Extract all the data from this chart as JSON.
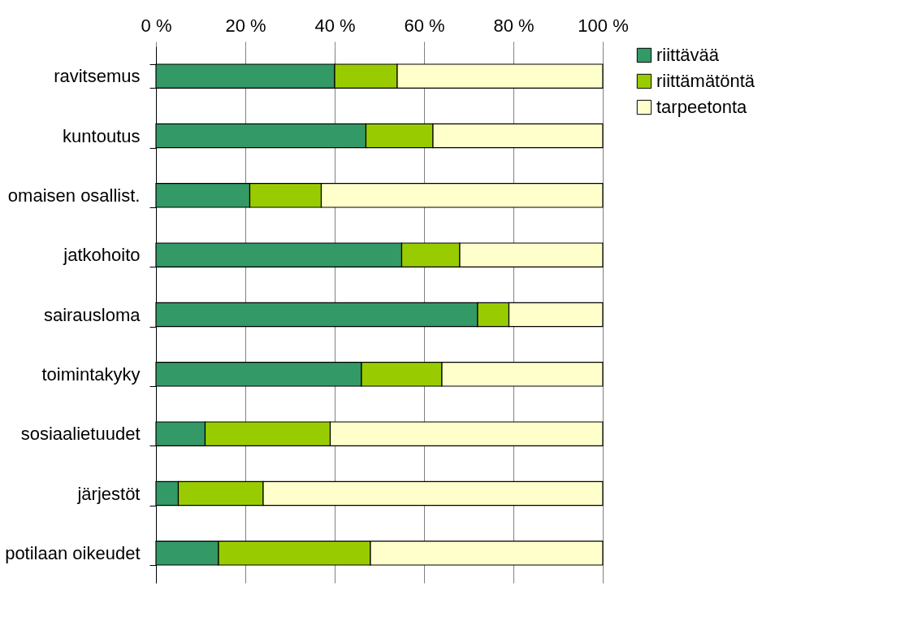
{
  "chart_data": {
    "type": "bar",
    "orientation": "horizontal",
    "stacked": true,
    "categories": [
      "ravitsemus",
      "kuntoutus",
      "omaisen osallist.",
      "jatkohoito",
      "sairausloma",
      "toimintakyky",
      "sosiaalietuudet",
      "järjestöt",
      "potilaan oikeudet"
    ],
    "series": [
      {
        "name": "riittävää",
        "color": "#339966",
        "values": [
          40,
          47,
          21,
          55,
          72,
          46,
          11,
          5,
          14
        ]
      },
      {
        "name": "riittämätöntä",
        "color": "#99cc00",
        "values": [
          14,
          15,
          16,
          13,
          7,
          18,
          28,
          19,
          34
        ]
      },
      {
        "name": "tarpeetonta",
        "color": "#ffffcc",
        "values": [
          46,
          38,
          63,
          32,
          21,
          36,
          61,
          76,
          52
        ]
      }
    ],
    "xlim": [
      0,
      100
    ],
    "xticks": [
      {
        "value": 0,
        "label": "0 %"
      },
      {
        "value": 20,
        "label": "20 %"
      },
      {
        "value": 40,
        "label": "40 %"
      },
      {
        "value": 60,
        "label": "60 %"
      },
      {
        "value": 80,
        "label": "80 %"
      },
      {
        "value": 100,
        "label": "100 %"
      }
    ],
    "grid": "x",
    "legend": "right"
  }
}
